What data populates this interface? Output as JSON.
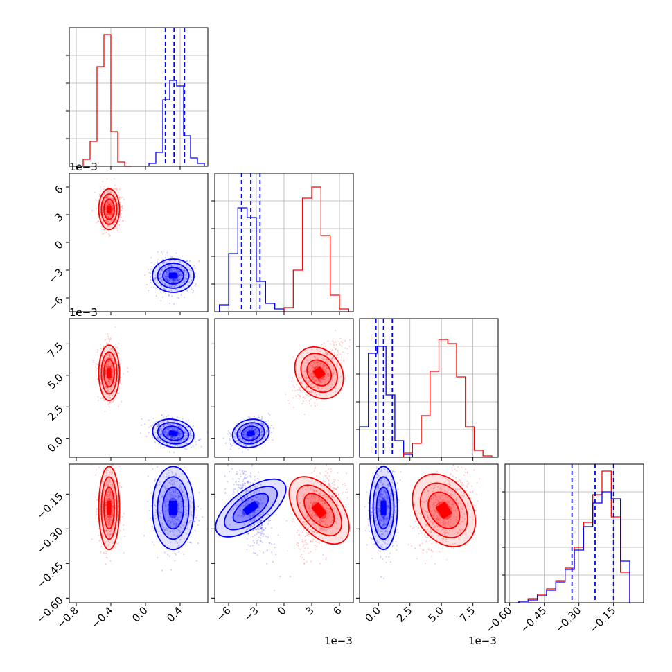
{
  "figure": {
    "colors": {
      "series_a": "#ff0000",
      "series_b": "#0000ff",
      "grid": "#b0b0b0",
      "axis": "#000000"
    }
  },
  "chart_data": [
    {
      "type": "histogram",
      "panel": "hist-x0",
      "xlim": [
        -0.88,
        0.72
      ],
      "grid": true,
      "series": [
        {
          "color": "#ff0000",
          "bins": [
            -0.72,
            -0.64,
            -0.56,
            -0.48,
            -0.4,
            -0.32,
            -0.24,
            -0.16
          ],
          "counts": [
            0.05,
            0.18,
            0.72,
            0.95,
            0.25,
            0.03,
            0.0
          ]
        },
        {
          "color": "#0000ff",
          "bins": [
            0.04,
            0.12,
            0.2,
            0.28,
            0.36,
            0.44,
            0.52,
            0.6,
            0.68
          ],
          "counts": [
            0.02,
            0.1,
            0.48,
            0.62,
            0.58,
            0.22,
            0.06,
            0.02
          ]
        }
      ],
      "quantiles": [
        0.23,
        0.33,
        0.45
      ]
    },
    {
      "type": "histogram",
      "panel": "hist-x1",
      "xlim": [
        -7.5,
        7.5
      ],
      "grid": true,
      "series": [
        {
          "color": "#0000ff",
          "bins": [
            -7.0,
            -6.0,
            -5.0,
            -4.0,
            -3.0,
            -2.0,
            -1.0,
            0.0
          ],
          "counts": [
            0.05,
            0.42,
            0.75,
            0.68,
            0.22,
            0.06,
            0.02
          ]
        },
        {
          "color": "#ff0000",
          "bins": [
            0.0,
            1.0,
            2.0,
            3.0,
            4.0,
            5.0,
            6.0,
            7.0
          ],
          "counts": [
            0.03,
            0.3,
            0.82,
            0.9,
            0.55,
            0.12,
            0.02
          ]
        }
      ],
      "quantiles": [
        -4.6,
        -3.6,
        -2.6
      ]
    },
    {
      "type": "histogram",
      "panel": "hist-x2",
      "xlim": [
        -1.5,
        9.5
      ],
      "grid": true,
      "series": [
        {
          "color": "#0000ff",
          "bins": [
            -1.5,
            -0.8,
            -0.1,
            0.6,
            1.3,
            2.0,
            2.7
          ],
          "counts": [
            0.22,
            0.75,
            0.8,
            0.45,
            0.12,
            0.02
          ]
        },
        {
          "color": "#ff0000",
          "bins": [
            2.0,
            2.7,
            3.4,
            4.1,
            4.8,
            5.5,
            6.2,
            6.9,
            7.6,
            8.3,
            9.0
          ],
          "counts": [
            0.03,
            0.1,
            0.3,
            0.62,
            0.85,
            0.82,
            0.58,
            0.22,
            0.05,
            0.01
          ]
        }
      ],
      "quantiles": [
        -0.2,
        0.4,
        1.1
      ]
    },
    {
      "type": "histogram",
      "panel": "hist-x3",
      "xlim": [
        -0.62,
        -0.02
      ],
      "grid": true,
      "series": [
        {
          "color": "#ff0000",
          "bins": [
            -0.56,
            -0.52,
            -0.48,
            -0.44,
            -0.4,
            -0.36,
            -0.32,
            -0.28,
            -0.24,
            -0.2,
            -0.16,
            -0.12,
            -0.08
          ],
          "counts": [
            0.01,
            0.03,
            0.06,
            0.1,
            0.16,
            0.25,
            0.4,
            0.58,
            0.78,
            0.95,
            0.62,
            0.22
          ]
        },
        {
          "color": "#0000ff",
          "bins": [
            -0.56,
            -0.52,
            -0.48,
            -0.44,
            -0.4,
            -0.36,
            -0.32,
            -0.28,
            -0.24,
            -0.2,
            -0.16,
            -0.12,
            -0.08
          ],
          "counts": [
            0.01,
            0.02,
            0.05,
            0.09,
            0.15,
            0.24,
            0.38,
            0.55,
            0.72,
            0.8,
            0.75,
            0.3
          ]
        }
      ],
      "quantiles": [
        -0.33,
        -0.23,
        -0.15
      ]
    },
    {
      "type": "scatter",
      "panel": "scatter-x0-x1",
      "xlim": [
        -0.88,
        0.72
      ],
      "ylim": [
        -7.5,
        7.5
      ],
      "series": [
        {
          "color": "#ff0000",
          "center": [
            -0.42,
            3.6
          ],
          "spread": [
            0.06,
            1.1
          ],
          "tilt": 0.0
        },
        {
          "color": "#0000ff",
          "center": [
            0.32,
            -3.6
          ],
          "spread": [
            0.12,
            0.9
          ],
          "tilt": 0.0
        }
      ]
    },
    {
      "type": "scatter",
      "panel": "scatter-x0-x2",
      "xlim": [
        -0.88,
        0.72
      ],
      "ylim": [
        -1.5,
        9.5
      ],
      "series": [
        {
          "color": "#ff0000",
          "center": [
            -0.42,
            5.2
          ],
          "spread": [
            0.06,
            1.1
          ],
          "tilt": 0.0
        },
        {
          "color": "#0000ff",
          "center": [
            0.32,
            0.4
          ],
          "spread": [
            0.12,
            0.55
          ],
          "tilt": -0.3
        }
      ]
    },
    {
      "type": "scatter",
      "panel": "scatter-x1-x2",
      "xlim": [
        -7.5,
        7.5
      ],
      "ylim": [
        -1.5,
        9.5
      ],
      "series": [
        {
          "color": "#ff0000",
          "center": [
            3.8,
            5.2
          ],
          "spread": [
            1.2,
            1.1
          ],
          "tilt": 0.6
        },
        {
          "color": "#0000ff",
          "center": [
            -3.6,
            0.4
          ],
          "spread": [
            1.0,
            0.55
          ],
          "tilt": 0.3
        }
      ]
    },
    {
      "type": "scatter",
      "panel": "scatter-x0-x3",
      "xlim": [
        -0.88,
        0.72
      ],
      "ylim": [
        -0.62,
        -0.02
      ],
      "series": [
        {
          "color": "#ff0000",
          "center": [
            -0.42,
            -0.21
          ],
          "spread": [
            0.06,
            0.09
          ],
          "tilt": 0.0
        },
        {
          "color": "#0000ff",
          "center": [
            0.32,
            -0.21
          ],
          "spread": [
            0.12,
            0.09
          ],
          "tilt": 0.0
        }
      ]
    },
    {
      "type": "scatter",
      "panel": "scatter-x1-x3",
      "xlim": [
        -7.5,
        7.5
      ],
      "ylim": [
        -0.62,
        -0.02
      ],
      "series": [
        {
          "color": "#ff0000",
          "center": [
            3.8,
            -0.22
          ],
          "spread": [
            1.2,
            0.085
          ],
          "tilt": 0.45
        },
        {
          "color": "#0000ff",
          "center": [
            -3.6,
            -0.21
          ],
          "spread": [
            1.0,
            0.09
          ],
          "tilt": -0.6
        }
      ]
    },
    {
      "type": "scatter",
      "panel": "scatter-x2-x3",
      "xlim": [
        -1.5,
        9.5
      ],
      "ylim": [
        -0.62,
        -0.02
      ],
      "series": [
        {
          "color": "#ff0000",
          "center": [
            5.2,
            -0.22
          ],
          "spread": [
            1.1,
            0.085
          ],
          "tilt": 0.45
        },
        {
          "color": "#0000ff",
          "center": [
            0.4,
            -0.21
          ],
          "spread": [
            0.55,
            0.09
          ],
          "tilt": 0.0
        }
      ]
    }
  ],
  "axes": {
    "x0_ticks": [
      "−0.8",
      "−0.4",
      "0.0",
      "0.4"
    ],
    "x0_tick_values": [
      -0.8,
      -0.4,
      0.0,
      0.4
    ],
    "x1_ticks": [
      "−6",
      "−3",
      "0",
      "3",
      "6"
    ],
    "x1_tick_values": [
      -6,
      -3,
      0,
      3,
      6
    ],
    "x2_ticks": [
      "0.0",
      "2.5",
      "5.0",
      "7.5"
    ],
    "x2_tick_values": [
      0.0,
      2.5,
      5.0,
      7.5
    ],
    "x3_ticks": [
      "−0.60",
      "−0.45",
      "−0.30",
      "−0.15"
    ],
    "x3_tick_values": [
      -0.6,
      -0.45,
      -0.3,
      -0.15
    ],
    "offsets": {
      "row1_y": "1e−3",
      "row2_y": "1e−3",
      "col1_x": "1e−3",
      "col2_x": "1e−3"
    }
  }
}
